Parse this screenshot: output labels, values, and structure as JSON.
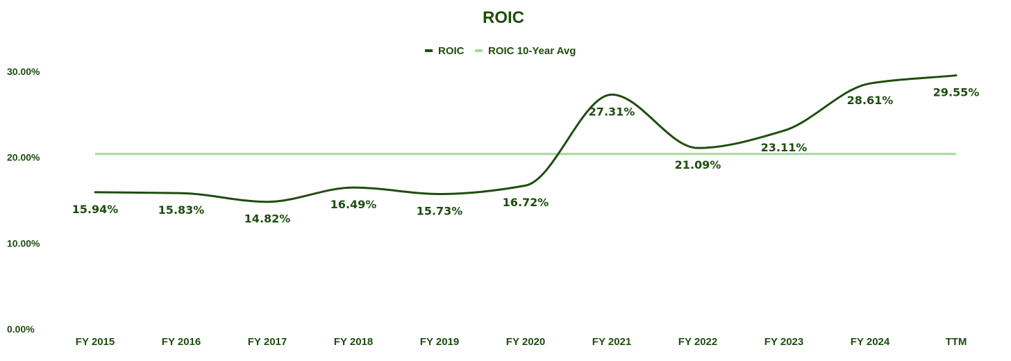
{
  "chart_data": {
    "type": "line",
    "title": "ROIC",
    "categories": [
      "FY 2015",
      "FY 2016",
      "FY 2017",
      "FY 2018",
      "FY 2019",
      "FY 2020",
      "FY 2021",
      "FY 2022",
      "FY 2023",
      "FY 2024",
      "TTM"
    ],
    "series": [
      {
        "name": "ROIC",
        "values": [
          15.94,
          15.83,
          14.82,
          16.49,
          15.73,
          16.72,
          27.31,
          21.09,
          23.11,
          28.61,
          29.55
        ],
        "labels": [
          "15.94%",
          "15.83%",
          "14.82%",
          "16.49%",
          "15.73%",
          "16.72%",
          "27.31%",
          "21.09%",
          "23.11%",
          "28.61%",
          "29.55%"
        ]
      },
      {
        "name": "ROIC 10-Year Avg",
        "values": [
          20.4,
          20.4,
          20.4,
          20.4,
          20.4,
          20.4,
          20.4,
          20.4,
          20.4,
          20.4,
          20.4
        ]
      }
    ],
    "ylim": [
      0,
      30
    ],
    "yticks": [
      "0.00%",
      "10.00%",
      "20.00%",
      "30.00%"
    ],
    "grid": false,
    "legend_position": "top",
    "colors": {
      "roic": "#1e4d0f",
      "avg": "#a8d5a0",
      "text": "#1e4d0f"
    }
  }
}
